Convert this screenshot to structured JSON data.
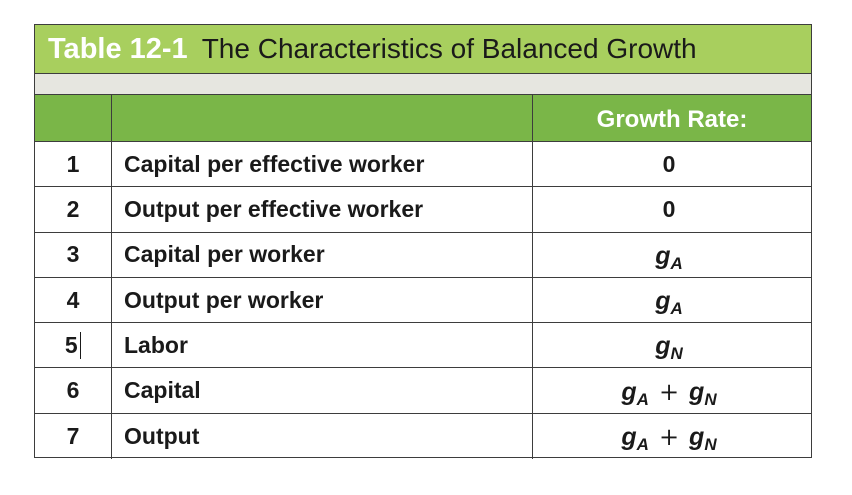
{
  "table": {
    "title_number": "Table 12-1",
    "title_text": "The Characteristics of Balanced Growth",
    "column_header": "Growth Rate:",
    "colors": {
      "title_band": "#a8cf5e",
      "sub_band": "#e6e6e0",
      "header_band": "#7ab648",
      "border": "#3d3d3d"
    },
    "rows": [
      {
        "num": "1",
        "label": "Capital per effective worker",
        "value": "0"
      },
      {
        "num": "2",
        "label": "Output per effective worker",
        "value": "0"
      },
      {
        "num": "3",
        "label": "Capital per worker",
        "value_g": "g",
        "value_sub": "A"
      },
      {
        "num": "4",
        "label": "Output per worker",
        "value_g": "g",
        "value_sub": "A"
      },
      {
        "num": "5",
        "label": "Labor",
        "value_g": "g",
        "value_sub": "N"
      },
      {
        "num": "6",
        "label": "Capital",
        "value_g": "g",
        "value_sub": "A",
        "plus": "+",
        "value_g2": "g",
        "value_sub2": "N"
      },
      {
        "num": "7",
        "label": "Output",
        "value_g": "g",
        "value_sub": "A",
        "plus": "+",
        "value_g2": "g",
        "value_sub2": "N"
      }
    ]
  }
}
